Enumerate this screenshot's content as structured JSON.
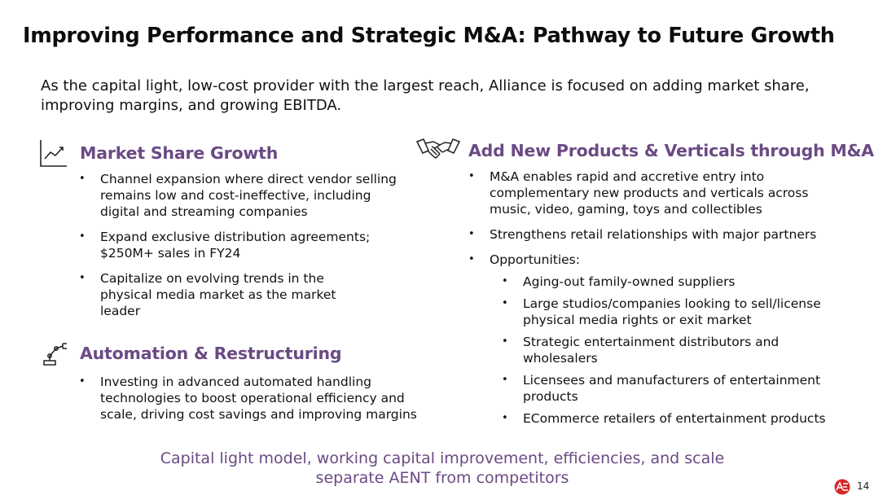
{
  "slide": {
    "title": "Improving Performance and Strategic M&A: Pathway to Future Growth",
    "intro": "As the capital light, low-cost provider with the largest reach, Alliance is focused on adding market share, improving margins, and growing EBITDA.",
    "footer_note_line1": "Capital light model, working capital improvement, efficiencies, and scale",
    "footer_note_line2": "separate AENT from competitors",
    "page_number": "14"
  },
  "sections": {
    "market_share": {
      "icon": "line-chart-icon",
      "title": "Market Share Growth",
      "bullets": [
        "Channel expansion where direct vendor selling remains low and cost-ineffective, including digital and streaming companies",
        "Expand exclusive distribution agreements; $250M+ sales in FY24",
        "Capitalize on evolving trends in the physical media market as the market leader"
      ]
    },
    "automation": {
      "icon": "robot-arm-icon",
      "title": "Automation & Restructuring",
      "bullets": [
        "Investing in advanced automated handling technologies to boost operational efficiency and scale, driving cost savings and improving margins"
      ]
    },
    "mna": {
      "icon": "handshake-icon",
      "title": "Add New Products & Verticals through M&A",
      "bullets": [
        "M&A enables rapid and accretive entry into complementary new products and verticals across music, video, gaming, toys and collectibles",
        "Strengthens retail relationships with major partners",
        "Opportunities:"
      ],
      "opportunities": [
        "Aging-out family-owned suppliers",
        "Large studios/companies looking to sell/license physical media rights or exit market",
        "Strategic entertainment distributors and wholesalers",
        "Licensees and manufacturers of entertainment products",
        "ECommerce retailers of entertainment products"
      ]
    }
  },
  "colors": {
    "accent": "#6b4a84",
    "logo_red": "#d62828"
  }
}
